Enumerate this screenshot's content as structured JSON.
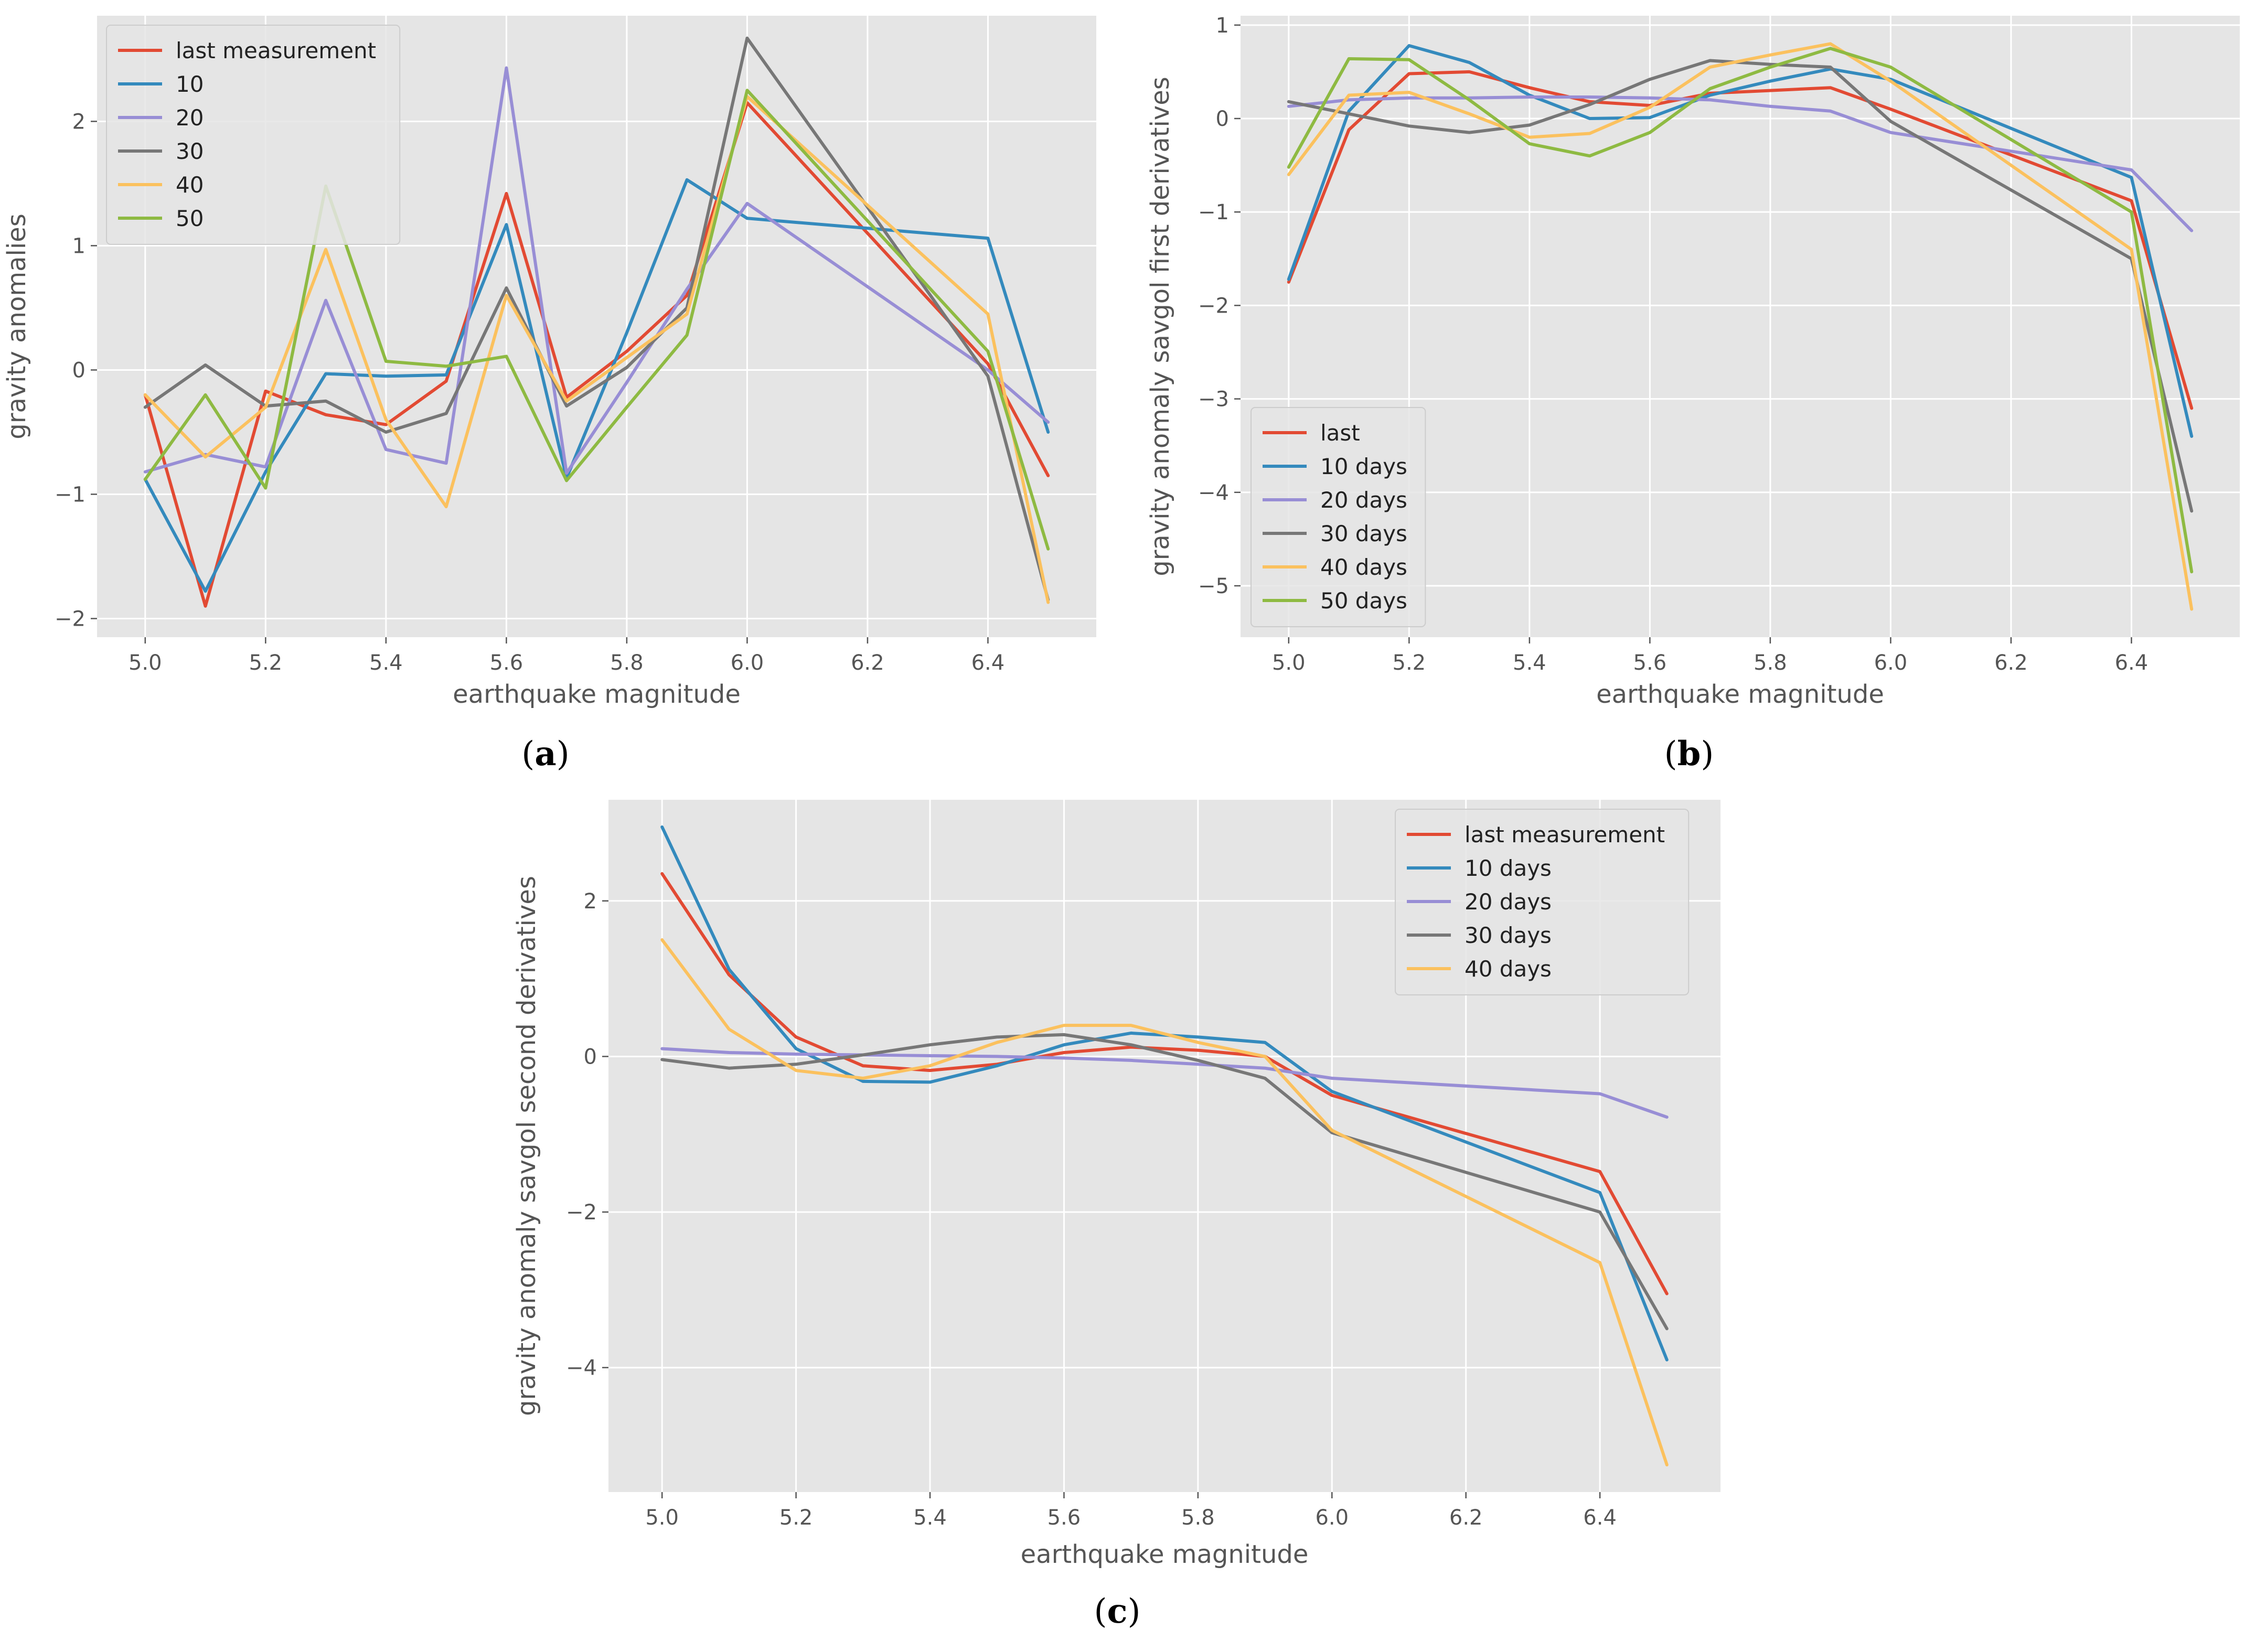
{
  "colors": {
    "last": "#E24A33",
    "d10": "#348ABD",
    "d20": "#988ED5",
    "d30": "#777777",
    "d40": "#FBC15E",
    "d50": "#8EBA42",
    "plot_bg": "#E5E5E5",
    "grid": "#FFFFFF",
    "tick_text": "#555555"
  },
  "chart_data": [
    {
      "id": "a",
      "type": "line",
      "panel_label": "a",
      "xlabel": "earthquake magnitude",
      "ylabel": "gravity anomalies",
      "xlim": [
        4.92,
        6.58
      ],
      "ylim": [
        -2.15,
        2.85
      ],
      "xticks": [
        5.0,
        5.2,
        5.4,
        5.6,
        5.8,
        6.0,
        6.2,
        6.4
      ],
      "xtick_labels": [
        "5.0",
        "5.2",
        "5.4",
        "5.6",
        "5.8",
        "6.0",
        "6.2",
        "6.4"
      ],
      "yticks": [
        -2,
        -1,
        0,
        1,
        2
      ],
      "ytick_labels": [
        "−2",
        "−1",
        "0",
        "1",
        "2"
      ],
      "legend_position": "top-left",
      "x": [
        5.0,
        5.1,
        5.2,
        5.3,
        5.4,
        5.5,
        5.6,
        5.7,
        5.8,
        5.9,
        6.0,
        6.4,
        6.5
      ],
      "series": [
        {
          "name": "last measurement",
          "color_key": "last",
          "values": [
            -0.2,
            -1.9,
            -0.17,
            -0.36,
            -0.44,
            -0.09,
            1.42,
            -0.22,
            0.15,
            0.6,
            2.15,
            0.05,
            -0.85
          ]
        },
        {
          "name": "10",
          "color_key": "d10",
          "values": [
            -0.88,
            -1.78,
            -0.82,
            -0.03,
            -0.05,
            -0.04,
            1.17,
            -0.87,
            0.3,
            1.53,
            1.22,
            1.06,
            -0.5
          ]
        },
        {
          "name": "20",
          "color_key": "d20",
          "values": [
            -0.82,
            -0.68,
            -0.78,
            0.56,
            -0.64,
            -0.75,
            2.43,
            -0.83,
            -0.1,
            0.65,
            1.34,
            0.0,
            -0.42
          ]
        },
        {
          "name": "30",
          "color_key": "d30",
          "values": [
            -0.3,
            0.04,
            -0.29,
            -0.25,
            -0.5,
            -0.35,
            0.66,
            -0.29,
            0.02,
            0.5,
            2.67,
            -0.05,
            -1.85
          ]
        },
        {
          "name": "40",
          "color_key": "d40",
          "values": [
            -0.2,
            -0.7,
            -0.3,
            0.97,
            -0.4,
            -1.1,
            0.6,
            -0.25,
            0.1,
            0.45,
            2.2,
            0.45,
            -1.87
          ]
        },
        {
          "name": "50",
          "color_key": "d50",
          "values": [
            -0.88,
            -0.2,
            -0.95,
            1.48,
            0.07,
            0.03,
            0.11,
            -0.89,
            -0.3,
            0.28,
            2.25,
            0.15,
            -1.44
          ]
        }
      ]
    },
    {
      "id": "b",
      "type": "line",
      "panel_label": "b",
      "xlabel": "earthquake magnitude",
      "ylabel": "gravity anomaly savgol first derivatives",
      "xlim": [
        4.92,
        6.58
      ],
      "ylim": [
        -5.55,
        1.1
      ],
      "xticks": [
        5.0,
        5.2,
        5.4,
        5.6,
        5.8,
        6.0,
        6.2,
        6.4
      ],
      "xtick_labels": [
        "5.0",
        "5.2",
        "5.4",
        "5.6",
        "5.8",
        "6.0",
        "6.2",
        "6.4"
      ],
      "yticks": [
        -5,
        -4,
        -3,
        -2,
        -1,
        0,
        1
      ],
      "ytick_labels": [
        "−5",
        "−4",
        "−3",
        "−2",
        "−1",
        "0",
        "1"
      ],
      "legend_position": "bottom-left",
      "x": [
        5.0,
        5.1,
        5.2,
        5.3,
        5.4,
        5.5,
        5.6,
        5.7,
        5.8,
        5.9,
        6.0,
        6.4,
        6.5
      ],
      "series": [
        {
          "name": "last",
          "color_key": "last",
          "values": [
            -1.75,
            -0.12,
            0.48,
            0.5,
            0.33,
            0.18,
            0.14,
            0.27,
            0.3,
            0.33,
            0.1,
            -0.88,
            -3.1
          ]
        },
        {
          "name": "10 days",
          "color_key": "d10",
          "values": [
            -1.72,
            0.08,
            0.78,
            0.6,
            0.25,
            0.0,
            0.01,
            0.25,
            0.4,
            0.53,
            0.42,
            -0.63,
            -3.4
          ]
        },
        {
          "name": "20 days",
          "color_key": "d20",
          "values": [
            0.13,
            0.2,
            0.22,
            0.22,
            0.23,
            0.23,
            0.22,
            0.2,
            0.13,
            0.08,
            -0.15,
            -0.55,
            -1.2
          ]
        },
        {
          "name": "30 days",
          "color_key": "d30",
          "values": [
            0.18,
            0.05,
            -0.08,
            -0.15,
            -0.07,
            0.15,
            0.42,
            0.62,
            0.58,
            0.55,
            -0.03,
            -1.5,
            -4.2
          ]
        },
        {
          "name": "40 days",
          "color_key": "d40",
          "values": [
            -0.6,
            0.25,
            0.28,
            0.05,
            -0.2,
            -0.16,
            0.12,
            0.55,
            0.68,
            0.8,
            0.4,
            -1.4,
            -5.25
          ]
        },
        {
          "name": "50 days",
          "color_key": "d50",
          "values": [
            -0.52,
            0.64,
            0.63,
            0.2,
            -0.27,
            -0.4,
            -0.15,
            0.32,
            0.55,
            0.75,
            0.55,
            -1.0,
            -4.85
          ]
        }
      ]
    },
    {
      "id": "c",
      "type": "line",
      "panel_label": "c",
      "xlabel": "earthquake magnitude",
      "ylabel": "gravity anomaly savgol second derivatives",
      "xlim": [
        4.92,
        6.58
      ],
      "ylim": [
        -5.6,
        3.3
      ],
      "xticks": [
        5.0,
        5.2,
        5.4,
        5.6,
        5.8,
        6.0,
        6.2,
        6.4
      ],
      "xtick_labels": [
        "5.0",
        "5.2",
        "5.4",
        "5.6",
        "5.8",
        "6.0",
        "6.2",
        "6.4"
      ],
      "yticks": [
        -4,
        -2,
        0,
        2
      ],
      "ytick_labels": [
        "−4",
        "−2",
        "0",
        "2"
      ],
      "legend_position": "top-right",
      "x": [
        5.0,
        5.1,
        5.2,
        5.3,
        5.4,
        5.5,
        5.6,
        5.7,
        5.8,
        5.9,
        6.0,
        6.4,
        6.5
      ],
      "series": [
        {
          "name": "last measurement",
          "color_key": "last",
          "values": [
            2.35,
            1.05,
            0.25,
            -0.12,
            -0.18,
            -0.1,
            0.05,
            0.12,
            0.08,
            0.0,
            -0.5,
            -1.48,
            -3.05
          ]
        },
        {
          "name": "10 days",
          "color_key": "d10",
          "values": [
            2.95,
            1.12,
            0.1,
            -0.32,
            -0.33,
            -0.12,
            0.15,
            0.3,
            0.25,
            0.18,
            -0.45,
            -1.75,
            -3.9
          ]
        },
        {
          "name": "20 days",
          "color_key": "d20",
          "values": [
            0.1,
            0.05,
            0.03,
            0.02,
            0.01,
            0.0,
            -0.02,
            -0.05,
            -0.1,
            -0.15,
            -0.28,
            -0.48,
            -0.78
          ]
        },
        {
          "name": "30 days",
          "color_key": "d30",
          "values": [
            -0.04,
            -0.15,
            -0.1,
            0.02,
            0.15,
            0.25,
            0.28,
            0.15,
            -0.05,
            -0.28,
            -0.98,
            -2.0,
            -3.5
          ]
        },
        {
          "name": "40 days",
          "color_key": "d40",
          "values": [
            1.5,
            0.35,
            -0.18,
            -0.28,
            -0.12,
            0.18,
            0.4,
            0.4,
            0.18,
            0.0,
            -0.95,
            -2.65,
            -5.25
          ]
        }
      ]
    }
  ]
}
